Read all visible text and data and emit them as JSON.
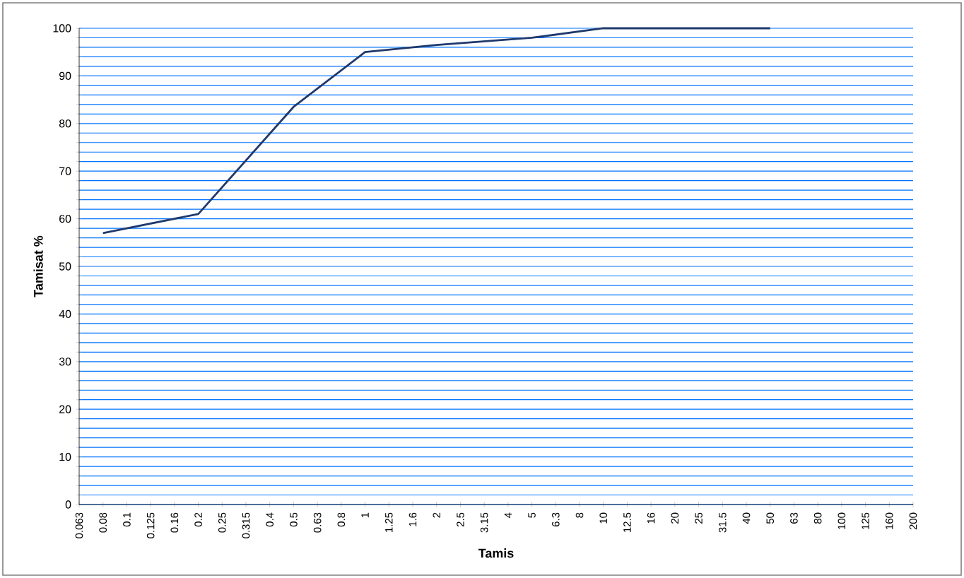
{
  "chart_data": {
    "type": "line",
    "xlabel": "Tamis",
    "ylabel": "Tamisat %",
    "categories": [
      "0.063",
      "0.08",
      "0.1",
      "0.125",
      "0.16",
      "0.2",
      "0.25",
      "0.315",
      "0.4",
      "0.5",
      "0.63",
      "0.8",
      "1",
      "1.25",
      "1.6",
      "2",
      "2.5",
      "3.15",
      "4",
      "5",
      "6.3",
      "8",
      "10",
      "12.5",
      "16",
      "20",
      "25",
      "31.5",
      "40",
      "50",
      "63",
      "80",
      "100",
      "125",
      "160",
      "200"
    ],
    "series": [
      {
        "color": "#1f3a6e",
        "values": [
          null,
          57,
          null,
          null,
          null,
          61,
          null,
          null,
          null,
          83.5,
          null,
          null,
          95,
          null,
          null,
          96.5,
          null,
          null,
          null,
          98,
          null,
          null,
          100,
          null,
          null,
          100,
          null,
          null,
          null,
          100,
          null,
          null,
          null,
          null,
          null,
          null
        ]
      }
    ],
    "ylim": [
      0,
      100
    ],
    "yticks": [
      0,
      {
        "value": 2,
        "label": null
      },
      {
        "value": 4,
        "label": null
      },
      {
        "value": 6,
        "label": null
      },
      {
        "value": 8,
        "label": null
      },
      10,
      {
        "value": 12,
        "label": null
      },
      {
        "value": 14,
        "label": null
      },
      {
        "value": 16,
        "label": null
      },
      {
        "value": 18,
        "label": null
      },
      20,
      {
        "value": 22,
        "label": null
      },
      {
        "value": 24,
        "label": null
      },
      {
        "value": 26,
        "label": null
      },
      {
        "value": 28,
        "label": null
      },
      30,
      {
        "value": 32,
        "label": null
      },
      {
        "value": 34,
        "label": null
      },
      {
        "value": 36,
        "label": null
      },
      {
        "value": 38,
        "label": null
      },
      40,
      {
        "value": 42,
        "label": null
      },
      {
        "value": 44,
        "label": null
      },
      {
        "value": 46,
        "label": null
      },
      {
        "value": 48,
        "label": null
      },
      50,
      {
        "value": 52,
        "label": null
      },
      {
        "value": 54,
        "label": null
      },
      {
        "value": 56,
        "label": null
      },
      {
        "value": 58,
        "label": null
      },
      60,
      {
        "value": 62,
        "label": null
      },
      {
        "value": 64,
        "label": null
      },
      {
        "value": 66,
        "label": null
      },
      {
        "value": 68,
        "label": null
      },
      70,
      {
        "value": 72,
        "label": null
      },
      {
        "value": 74,
        "label": null
      },
      {
        "value": 76,
        "label": null
      },
      {
        "value": 78,
        "label": null
      },
      80,
      {
        "value": 82,
        "label": null
      },
      {
        "value": 84,
        "label": null
      },
      {
        "value": 86,
        "label": null
      },
      {
        "value": 88,
        "label": null
      },
      90,
      {
        "value": 92,
        "label": null
      },
      {
        "value": 94,
        "label": null
      },
      {
        "value": 96,
        "label": null
      },
      {
        "value": 98,
        "label": null
      },
      100
    ],
    "grid": "y",
    "marker": "none",
    "line_style": "solid"
  }
}
